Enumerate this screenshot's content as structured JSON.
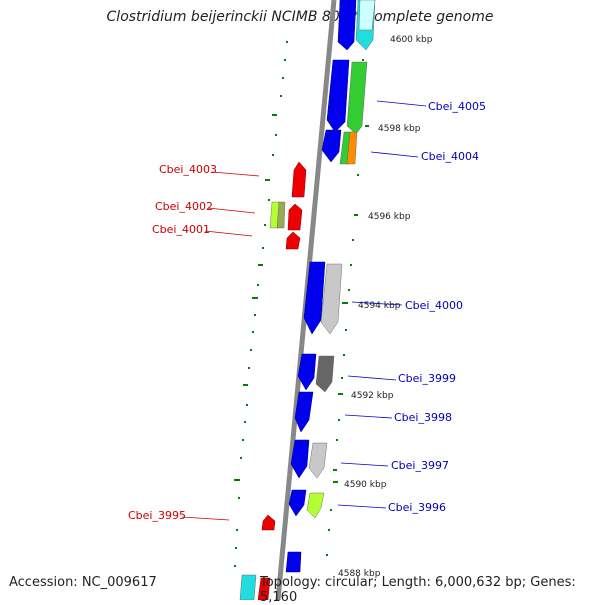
{
  "title": "Clostridium beijerinckii NCIMB 8052, complete genome",
  "accession": "Accession: NC_009617",
  "topology": "Topology: circular; Length: 6,000,632 bp; Genes: 5,160",
  "colors": {
    "forward_cds": "#0000ee",
    "reverse_cds": "#ee0000",
    "backbone": "#888888",
    "tick": "#008000",
    "label_forward": "#0000bb",
    "label_reverse": "#cc0000",
    "cog_green": "#33cc33",
    "cog_lime": "#b3ff33",
    "cog_gray": "#c8c8c8",
    "cog_darkgray": "#666666",
    "cog_orange": "#ff8c00",
    "cog_cyan": "#22dddd"
  },
  "kbp_ticks": [
    "4600 kbp",
    "4598 kbp",
    "4596 kbp",
    "4594 kbp",
    "4592 kbp",
    "4590 kbp",
    "4588 kbp"
  ],
  "genes_forward": [
    "Cbei_4005",
    "Cbei_4004",
    "Cbei_4000",
    "Cbei_3999",
    "Cbei_3998",
    "Cbei_3997",
    "Cbei_3996"
  ],
  "genes_reverse": [
    "Cbei_4003",
    "Cbei_4002",
    "Cbei_4001",
    "Cbei_3995"
  ]
}
